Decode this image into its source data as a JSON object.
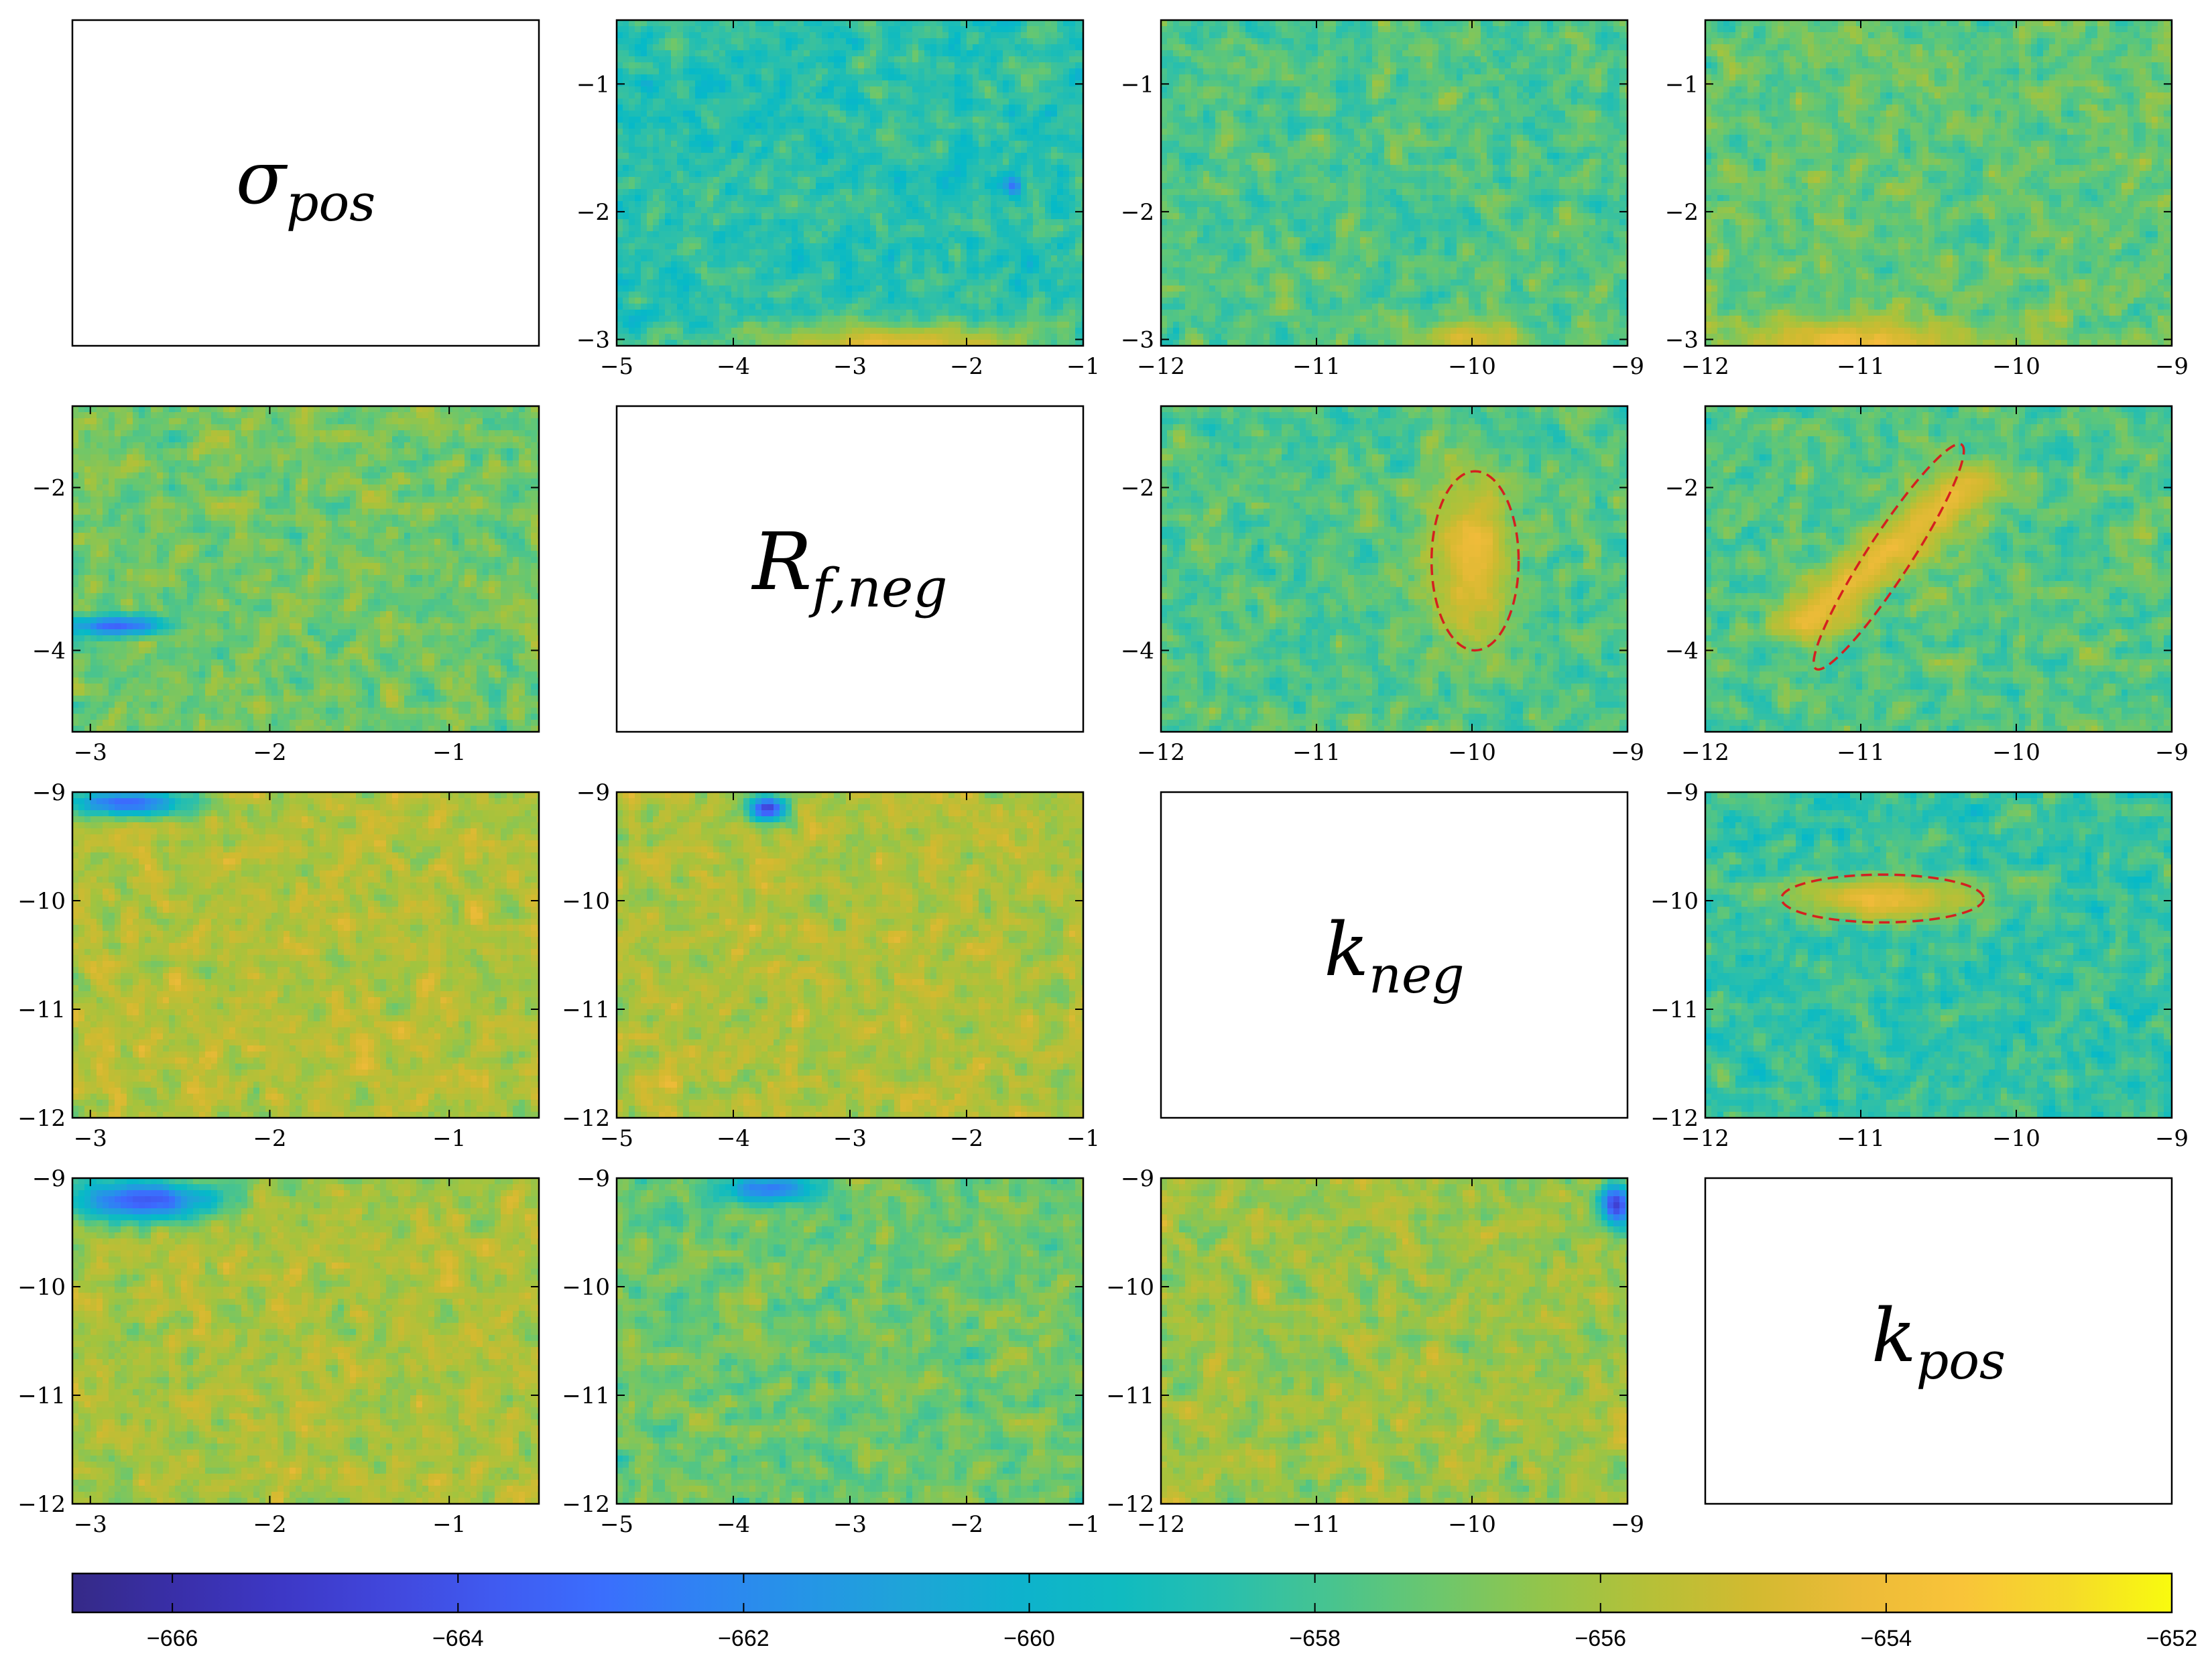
{
  "chart_data": {
    "type": "heatmap",
    "title": "",
    "colormap": {
      "name": "parula",
      "range": [
        -666.7,
        -652
      ],
      "ticks": [
        -666,
        -664,
        -662,
        -660,
        -658,
        -656,
        -654,
        -652
      ],
      "tick_labels": [
        "−666",
        "−664",
        "−662",
        "−660",
        "−658",
        "−656",
        "−654",
        "−652"
      ]
    },
    "diagonal_labels": [
      {
        "base": "σ",
        "sub": "pos"
      },
      {
        "base": "R",
        "sub": "f,neg"
      },
      {
        "base": "k",
        "sub": "neg"
      },
      {
        "base": "k",
        "sub": "pos"
      }
    ],
    "parameters": {
      "sigma_pos": [
        -3.1,
        -0.5
      ],
      "R_f_neg": [
        -5,
        -1
      ],
      "k_neg": [
        -12,
        -9
      ],
      "k_pos": [
        -12,
        -9
      ]
    },
    "panels": [
      {
        "row": 0,
        "col": 1,
        "xlim": [
          -5,
          -1
        ],
        "ylim": [
          -3.05,
          -0.5
        ],
        "xticks": [
          -5,
          -4,
          -3,
          -2,
          -1
        ],
        "xtick_labels": [
          "−5",
          "−4",
          "−3",
          "−2",
          "−1"
        ],
        "yticks": [
          -1,
          -2,
          -3
        ],
        "ytick_labels": [
          "−1",
          "−2",
          "−3"
        ],
        "base_level": -658.6,
        "noise_amp": 1.9,
        "features": [
          {
            "type": "high",
            "x": -2.6,
            "y": -3.05,
            "rx": 1.2,
            "ry": 0.18,
            "value": -654.4
          },
          {
            "type": "low",
            "x": -1.6,
            "y": -1.8,
            "rx": 0.08,
            "ry": 0.07,
            "value": -663
          }
        ]
      },
      {
        "row": 0,
        "col": 2,
        "xlim": [
          -12,
          -9
        ],
        "ylim": [
          -3.05,
          -0.5
        ],
        "xticks": [
          -12,
          -11,
          -10,
          -9
        ],
        "xtick_labels": [
          "−12",
          "−11",
          "−10",
          "−9"
        ],
        "yticks": [
          -1,
          -2,
          -3
        ],
        "ytick_labels": [
          "−1",
          "−2",
          "−3"
        ],
        "base_level": -657.7,
        "noise_amp": 1.8,
        "features": [
          {
            "type": "high",
            "x": -10.0,
            "y": -3.0,
            "rx": 0.35,
            "ry": 0.12,
            "value": -654.6
          }
        ]
      },
      {
        "row": 0,
        "col": 3,
        "xlim": [
          -12,
          -9
        ],
        "ylim": [
          -3.05,
          -0.5
        ],
        "xticks": [
          -12,
          -11,
          -10,
          -9
        ],
        "xtick_labels": [
          "−12",
          "−11",
          "−10",
          "−9"
        ],
        "yticks": [
          -1,
          -2,
          -3
        ],
        "ytick_labels": [
          "−1",
          "−2",
          "−3"
        ],
        "base_level": -657.3,
        "noise_amp": 1.8,
        "features": [
          {
            "type": "high",
            "x": -11.0,
            "y": -3.05,
            "rx": 0.8,
            "ry": 0.2,
            "value": -654.2
          }
        ]
      },
      {
        "row": 1,
        "col": 0,
        "xlim": [
          -3.1,
          -0.5
        ],
        "ylim": [
          -5,
          -1
        ],
        "xticks": [
          -3,
          -2,
          -1
        ],
        "xtick_labels": [
          "−3",
          "−2",
          "−1"
        ],
        "yticks": [
          -2,
          -4
        ],
        "ytick_labels": [
          "−2",
          "−4"
        ],
        "base_level": -657.0,
        "noise_amp": 1.8,
        "features": [
          {
            "type": "low",
            "x": -2.85,
            "y": -3.7,
            "rx": 0.25,
            "ry": 0.12,
            "value": -663.2
          }
        ]
      },
      {
        "row": 1,
        "col": 2,
        "xlim": [
          -12,
          -9
        ],
        "ylim": [
          -5,
          -1
        ],
        "xticks": [
          -12,
          -11,
          -10,
          -9
        ],
        "xtick_labels": [
          "−12",
          "−11",
          "−10",
          "−9"
        ],
        "yticks": [
          -2,
          -4
        ],
        "ytick_labels": [
          "−2",
          "−4"
        ],
        "base_level": -657.7,
        "noise_amp": 1.8,
        "features": [
          {
            "type": "high",
            "x": -10.0,
            "y": -2.85,
            "rx": 0.27,
            "ry": 1.05,
            "value": -654.2
          }
        ],
        "confidence_ellipse": {
          "cx": -9.98,
          "cy": -2.9,
          "rx": 0.28,
          "ry": 1.1,
          "angle_deg": 0
        }
      },
      {
        "row": 1,
        "col": 3,
        "xlim": [
          -12,
          -9
        ],
        "ylim": [
          -5,
          -1
        ],
        "xticks": [
          -12,
          -11,
          -10,
          -9
        ],
        "xtick_labels": [
          "−12",
          "−11",
          "−10",
          "−9"
        ],
        "yticks": [
          -2,
          -4
        ],
        "ytick_labels": [
          "−2",
          "−4"
        ],
        "base_level": -657.6,
        "noise_amp": 1.8,
        "features": [
          {
            "type": "ridge",
            "x1": -11.35,
            "y1": -3.65,
            "x2": -10.3,
            "y2": -1.95,
            "width": 0.22,
            "value": -654.3
          }
        ],
        "confidence_ellipse": {
          "cx": -10.82,
          "cy": -2.85,
          "rx": 0.86,
          "ry": 0.14,
          "angle_deg": -57
        }
      },
      {
        "row": 2,
        "col": 0,
        "xlim": [
          -3.1,
          -0.5
        ],
        "ylim": [
          -12,
          -9
        ],
        "xticks": [
          -3,
          -2,
          -1
        ],
        "xtick_labels": [
          "−3",
          "−2",
          "−1"
        ],
        "yticks": [
          -9,
          -10,
          -11,
          -12
        ],
        "ytick_labels": [
          "−9",
          "−10",
          "−11",
          "−12"
        ],
        "base_level": -655.7,
        "noise_amp": 1.7,
        "features": [
          {
            "type": "low",
            "x": -2.8,
            "y": -9.1,
            "rx": 0.35,
            "ry": 0.12,
            "value": -663.2
          }
        ]
      },
      {
        "row": 2,
        "col": 1,
        "xlim": [
          -5,
          -1
        ],
        "ylim": [
          -12,
          -9
        ],
        "xticks": [
          -5,
          -4,
          -3,
          -2,
          -1
        ],
        "xtick_labels": [
          "−5",
          "−4",
          "−3",
          "−2",
          "−1"
        ],
        "yticks": [
          -9,
          -10,
          -11,
          -12
        ],
        "ytick_labels": [
          "−9",
          "−10",
          "−11",
          "−12"
        ],
        "base_level": -655.8,
        "noise_amp": 1.7,
        "features": [
          {
            "type": "low",
            "x": -3.7,
            "y": -9.15,
            "rx": 0.16,
            "ry": 0.12,
            "value": -664.8
          }
        ]
      },
      {
        "row": 2,
        "col": 3,
        "xlim": [
          -12,
          -9
        ],
        "ylim": [
          -12,
          -9
        ],
        "xticks": [
          -12,
          -11,
          -10,
          -9
        ],
        "xtick_labels": [
          "−12",
          "−11",
          "−10",
          "−9"
        ],
        "yticks": [
          -9,
          -10,
          -11,
          -12
        ],
        "ytick_labels": [
          "−9",
          "−10",
          "−11",
          "−12"
        ],
        "base_level": -658.3,
        "noise_amp": 1.9,
        "features": [
          {
            "type": "high",
            "x": -10.85,
            "y": -9.98,
            "rx": 0.62,
            "ry": 0.2,
            "value": -654.2
          }
        ],
        "confidence_ellipse": {
          "cx": -10.86,
          "cy": -9.98,
          "rx": 0.65,
          "ry": 0.22,
          "angle_deg": 0
        }
      },
      {
        "row": 3,
        "col": 0,
        "xlim": [
          -3.1,
          -0.5
        ],
        "ylim": [
          -12,
          -9
        ],
        "xticks": [
          -3,
          -2,
          -1
        ],
        "xtick_labels": [
          "−3",
          "−2",
          "−1"
        ],
        "yticks": [
          -9,
          -10,
          -11,
          -12
        ],
        "ytick_labels": [
          "−9",
          "−10",
          "−11",
          "−12"
        ],
        "base_level": -655.9,
        "noise_amp": 1.7,
        "features": [
          {
            "type": "low",
            "x": -2.7,
            "y": -9.2,
            "rx": 0.4,
            "ry": 0.18,
            "value": -663.6
          }
        ]
      },
      {
        "row": 3,
        "col": 1,
        "xlim": [
          -5,
          -1
        ],
        "ylim": [
          -12,
          -9
        ],
        "xticks": [
          -5,
          -4,
          -3,
          -2,
          -1
        ],
        "xtick_labels": [
          "−5",
          "−4",
          "−3",
          "−2",
          "−1"
        ],
        "yticks": [
          -9,
          -10,
          -11,
          -12
        ],
        "ytick_labels": [
          "−9",
          "−10",
          "−11",
          "−12"
        ],
        "base_level": -657.1,
        "noise_amp": 1.7,
        "features": [
          {
            "type": "low",
            "x": -3.7,
            "y": -9.1,
            "rx": 0.4,
            "ry": 0.12,
            "value": -662.5
          }
        ]
      },
      {
        "row": 3,
        "col": 2,
        "xlim": [
          -12,
          -9
        ],
        "ylim": [
          -12,
          -9
        ],
        "xticks": [
          -12,
          -11,
          -10,
          -9
        ],
        "xtick_labels": [
          "−12",
          "−11",
          "−10",
          "−9"
        ],
        "yticks": [
          -9,
          -10,
          -11,
          -12
        ],
        "ytick_labels": [
          "−9",
          "−10",
          "−11",
          "−12"
        ],
        "base_level": -656.2,
        "noise_amp": 1.7,
        "features": [
          {
            "type": "low",
            "x": -9.07,
            "y": -9.25,
            "rx": 0.1,
            "ry": 0.2,
            "value": -664.8
          }
        ]
      }
    ]
  }
}
